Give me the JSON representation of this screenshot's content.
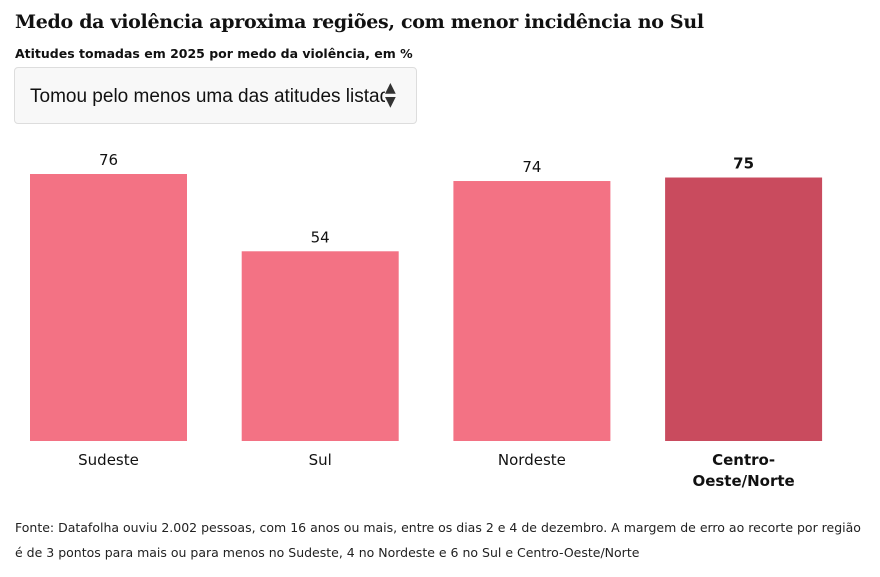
{
  "header": {
    "title": "Medo da violência aproxima regiões, com menor incidência no Sul",
    "subtitle": "Atitudes tomadas em 2025 por medo da violência, em %"
  },
  "select": {
    "value": "Tomou pelo menos uma das atitudes listadas",
    "icon": "updown-arrows-icon"
  },
  "chart_data": {
    "type": "bar",
    "title": "Medo da violência aproxima regiões, com menor incidência no Sul",
    "categories": [
      "Sudeste",
      "Sul",
      "Nordeste",
      "Centro-Oeste/Norte"
    ],
    "category_lines": [
      [
        "Sudeste"
      ],
      [
        "Sul"
      ],
      [
        "Nordeste"
      ],
      [
        "Centro-",
        "Oeste/Norte"
      ]
    ],
    "values": [
      76,
      54,
      74,
      75
    ],
    "highlight_index": 3,
    "colors": {
      "default": "#f37284",
      "highlight": "#c94b5e"
    },
    "xlabel": "",
    "ylabel": "",
    "ylim": [
      0,
      76
    ]
  },
  "footer": {
    "source": "Fonte: Datafolha ouviu 2.002 pessoas, com 16 anos ou mais, entre os dias 2 e 4 de dezembro. A margem de erro ao recorte por região é de 3 pontos para mais ou para menos no Sudeste, 4 no Nordeste e 6 no Sul e Centro-Oeste/Norte"
  }
}
